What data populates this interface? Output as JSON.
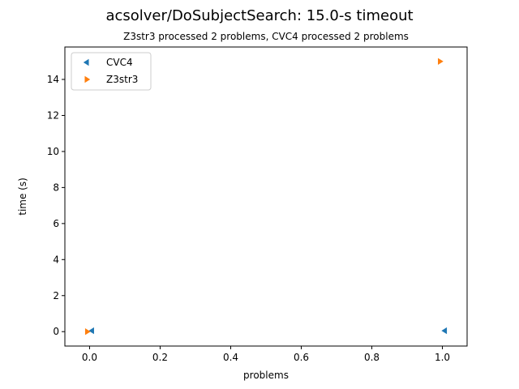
{
  "figure": {
    "title": "acsolver/DoSubjectSearch: 15.0-s timeout",
    "subtitle": "Z3str3 processed 2 problems, CVC4 processed 2 problems"
  },
  "chart_data": {
    "type": "scatter",
    "title": "acsolver/DoSubjectSearch: 15.0-s timeout",
    "subtitle": "Z3str3 processed 2 problems, CVC4 processed 2 problems",
    "xlabel": "problems",
    "ylabel": "time (s)",
    "xlim": [
      -0.07,
      1.07
    ],
    "ylim": [
      -0.8,
      15.8
    ],
    "xticks": [
      0.0,
      0.2,
      0.4,
      0.6,
      0.8,
      1.0
    ],
    "xtick_labels": [
      "0.0",
      "0.2",
      "0.4",
      "0.6",
      "0.8",
      "1.0"
    ],
    "yticks": [
      0,
      2,
      4,
      6,
      8,
      10,
      12,
      14
    ],
    "ytick_labels": [
      "0",
      "2",
      "4",
      "6",
      "8",
      "10",
      "12",
      "14"
    ],
    "grid": false,
    "legend_position": "top-left",
    "series": [
      {
        "name": "CVC4",
        "marker": "triangle-left",
        "color": "#1f77b4",
        "x": [
          0.0,
          1.0
        ],
        "y": [
          0.05,
          0.05
        ]
      },
      {
        "name": "Z3str3",
        "marker": "triangle-right",
        "color": "#ff7f0e",
        "x": [
          0.0,
          1.0
        ],
        "y": [
          0.0,
          15.0
        ]
      }
    ]
  }
}
